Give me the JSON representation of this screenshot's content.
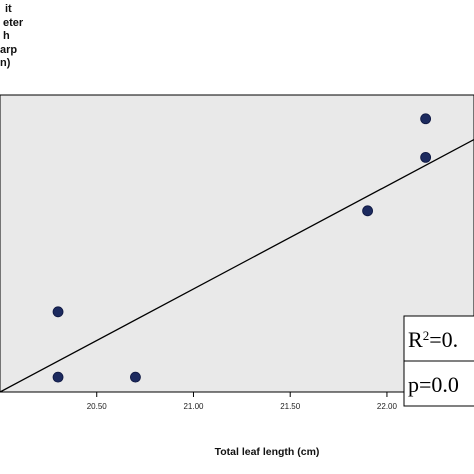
{
  "chart_data": {
    "type": "scatter",
    "title": "",
    "ylabel_lines": [
      "it",
      "eter",
      "h",
      "arp",
      "n)"
    ],
    "xlabel": "Total leaf length (cm)",
    "x_ticks": [
      "20.50",
      "21.00",
      "21.50",
      "22.00"
    ],
    "xlim": [
      20.0,
      22.45
    ],
    "ylim": [
      0.0,
      1.0
    ],
    "points": [
      {
        "x": 20.3,
        "y": 0.27
      },
      {
        "x": 20.3,
        "y": 0.05
      },
      {
        "x": 20.7,
        "y": 0.05
      },
      {
        "x": 21.9,
        "y": 0.61
      },
      {
        "x": 22.2,
        "y": 0.79
      },
      {
        "x": 22.2,
        "y": 0.92
      }
    ],
    "fit_line": {
      "x": [
        20.0,
        22.45
      ],
      "y": [
        0.0,
        0.85
      ]
    },
    "stats": {
      "r2_prefix": "R",
      "r2_sup": "2",
      "r2_value": "=0.",
      "p_label": "p=0.0"
    },
    "colors": {
      "plot_bg": "#e9e9e9",
      "point": "#1c2a5e",
      "line": "#000000",
      "box_bg": "#ffffff"
    },
    "grid": false
  }
}
